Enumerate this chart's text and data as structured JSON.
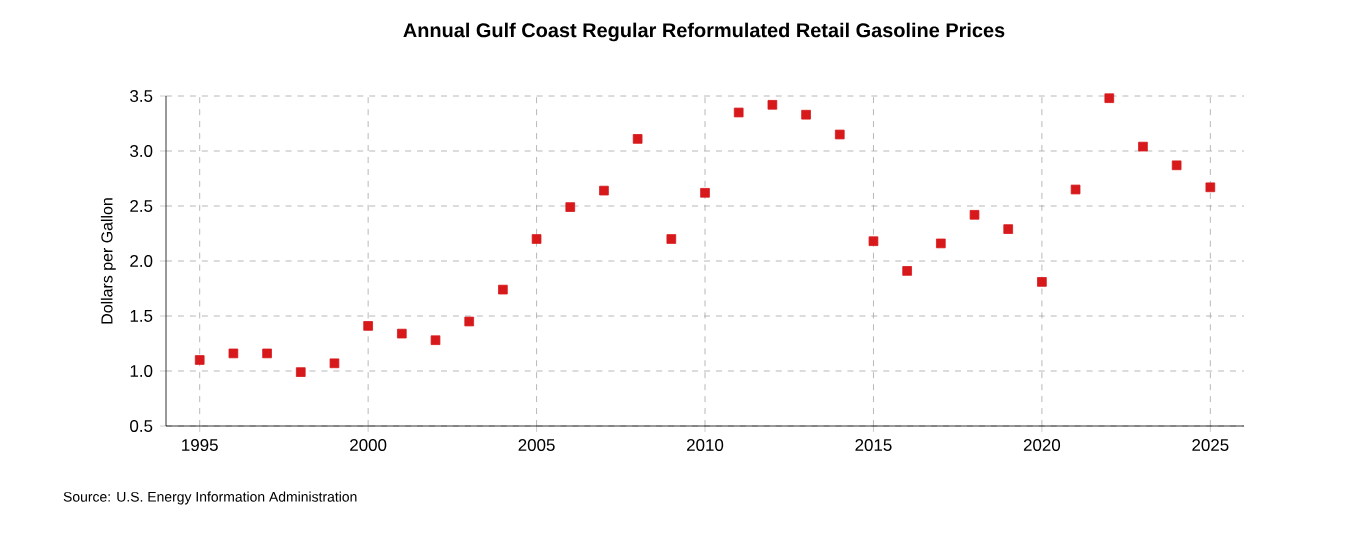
{
  "chart_data": {
    "type": "scatter",
    "title": "Annual Gulf Coast Regular Reformulated Retail Gasoline Prices",
    "ylabel": "Dollars per Gallon",
    "x": [
      1995,
      1996,
      1997,
      1998,
      1999,
      2000,
      2001,
      2002,
      2003,
      2004,
      2005,
      2006,
      2007,
      2008,
      2009,
      2010,
      2011,
      2012,
      2013,
      2014,
      2015,
      2016,
      2017,
      2018,
      2019,
      2020,
      2021,
      2022,
      2023,
      2024,
      2025
    ],
    "values": [
      1.1,
      1.16,
      1.16,
      0.99,
      1.07,
      1.41,
      1.34,
      1.28,
      1.45,
      1.74,
      2.2,
      2.49,
      2.64,
      3.11,
      2.2,
      2.62,
      3.35,
      3.42,
      3.33,
      3.15,
      2.18,
      1.91,
      2.16,
      2.42,
      2.29,
      1.81,
      2.65,
      3.48,
      3.04,
      2.87,
      2.67
    ],
    "color": "#d7191c",
    "marker": "square",
    "xlim": [
      1994,
      2026
    ],
    "ylim": [
      0.5,
      3.5
    ],
    "xticks": [
      1995,
      2000,
      2005,
      2010,
      2015,
      2020,
      2025
    ],
    "yticks": [
      {
        "value": 0.5,
        "label": "0.5"
      },
      {
        "value": 1.0,
        "label": "1.0"
      },
      {
        "value": 1.5,
        "label": "1.5"
      },
      {
        "value": 2.0,
        "label": "2.0"
      },
      {
        "value": 2.5,
        "label": "2.5"
      },
      {
        "value": 3.0,
        "label": "3.0"
      },
      {
        "value": 3.5,
        "label": "3.5"
      }
    ],
    "grid": true,
    "annotations": [
      "Source: U.S. Energy Information Administration"
    ]
  }
}
